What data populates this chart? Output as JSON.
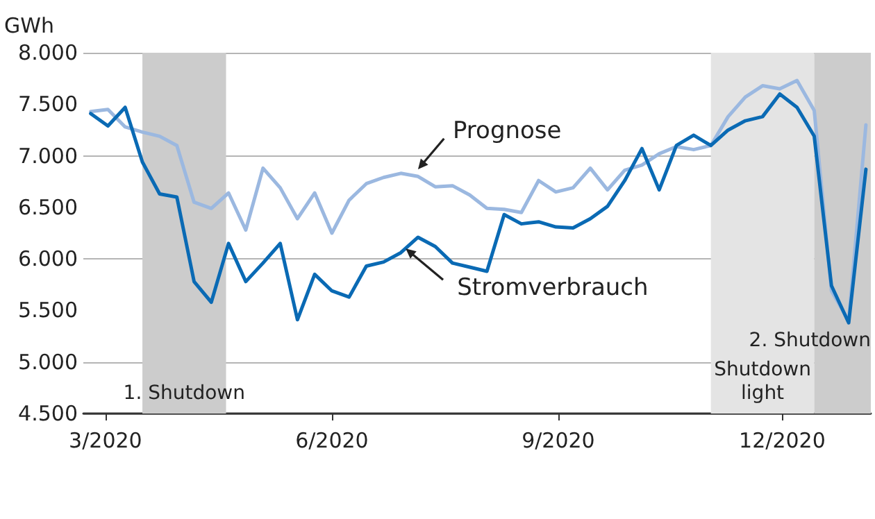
{
  "chart_data": {
    "type": "line",
    "ylabel": "GWh",
    "x": [
      "2020-02-24",
      "2020-03-02",
      "2020-03-09",
      "2020-03-16",
      "2020-03-23",
      "2020-03-30",
      "2020-04-06",
      "2020-04-13",
      "2020-04-20",
      "2020-04-27",
      "2020-05-04",
      "2020-05-11",
      "2020-05-18",
      "2020-05-25",
      "2020-06-01",
      "2020-06-08",
      "2020-06-15",
      "2020-06-22",
      "2020-06-29",
      "2020-07-06",
      "2020-07-13",
      "2020-07-20",
      "2020-07-27",
      "2020-08-03",
      "2020-08-10",
      "2020-08-17",
      "2020-08-24",
      "2020-08-31",
      "2020-09-07",
      "2020-09-14",
      "2020-09-21",
      "2020-09-28",
      "2020-10-05",
      "2020-10-12",
      "2020-10-19",
      "2020-10-26",
      "2020-11-02",
      "2020-11-09",
      "2020-11-16",
      "2020-11-23",
      "2020-11-30",
      "2020-12-07",
      "2020-12-14",
      "2020-12-21",
      "2020-12-28",
      "2021-01-04"
    ],
    "series": [
      {
        "color": "#9bb8e0",
        "values": [
          7430,
          7450,
          7280,
          7230,
          7190,
          7100,
          6550,
          6490,
          6640,
          6280,
          6880,
          6690,
          6390,
          6640,
          6250,
          6570,
          6730,
          6790,
          6830,
          6800,
          6700,
          6710,
          6620,
          6490,
          6480,
          6450,
          6760,
          6650,
          6690,
          6880,
          6670,
          6860,
          6910,
          7020,
          7090,
          7060,
          7100,
          7380,
          7570,
          7680,
          7650,
          7730,
          7440,
          5690,
          5400,
          7300
        ]
      },
      {
        "color": "#0a6ab4",
        "values": [
          7410,
          7290,
          7470,
          6940,
          6630,
          6600,
          5780,
          5580,
          6150,
          5780,
          5960,
          6150,
          5410,
          5850,
          5690,
          5630,
          5930,
          5970,
          6060,
          6210,
          6120,
          5960,
          5920,
          5880,
          6430,
          6340,
          6360,
          6310,
          6300,
          6390,
          6510,
          6760,
          7070,
          6670,
          7100,
          7200,
          7100,
          7250,
          7340,
          7380,
          7600,
          7470,
          7190,
          5740,
          5380,
          6870
        ]
      }
    ],
    "xlim": [
      "2020-02-21",
      "2021-01-06"
    ],
    "xticks": [
      {
        "value": "2020-03-01",
        "label": "3/2020"
      },
      {
        "value": "2020-06-01",
        "label": "6/2020"
      },
      {
        "value": "2020-09-01",
        "label": "9/2020"
      },
      {
        "value": "2020-12-01",
        "label": "12/2020"
      }
    ],
    "ylim": [
      4500,
      8000
    ],
    "yticks": [
      {
        "value": 4500,
        "label": "4.500"
      },
      {
        "value": 5000,
        "label": "5.000"
      },
      {
        "value": 5500,
        "label": "5.500"
      },
      {
        "value": 6000,
        "label": "6.000"
      },
      {
        "value": 6500,
        "label": "6.500"
      },
      {
        "value": 7000,
        "label": "7.000"
      },
      {
        "value": 7500,
        "label": "7.500"
      },
      {
        "value": 8000,
        "label": "8.000"
      }
    ],
    "grid": "y",
    "marker": "none",
    "line_style": "solid",
    "bands": [
      {
        "axis": "x",
        "from": "2020-03-16",
        "to": "2020-04-19",
        "label": "1. Shutdown",
        "color": "#cccccc"
      },
      {
        "axis": "x",
        "from": "2020-11-02",
        "to": "2020-12-14",
        "label": "Shutdown\nlight",
        "color": "#e4e4e4"
      },
      {
        "axis": "x",
        "from": "2020-12-14",
        "to": "2021-01-06",
        "label": "2. Shutdown",
        "color": "#cccccc"
      }
    ],
    "annotations": [
      {
        "text": "Prognose",
        "x": "2020-07-06",
        "y": 6870
      },
      {
        "text": "Stromverbrauch",
        "x": "2020-07-01",
        "y": 6100
      }
    ]
  }
}
